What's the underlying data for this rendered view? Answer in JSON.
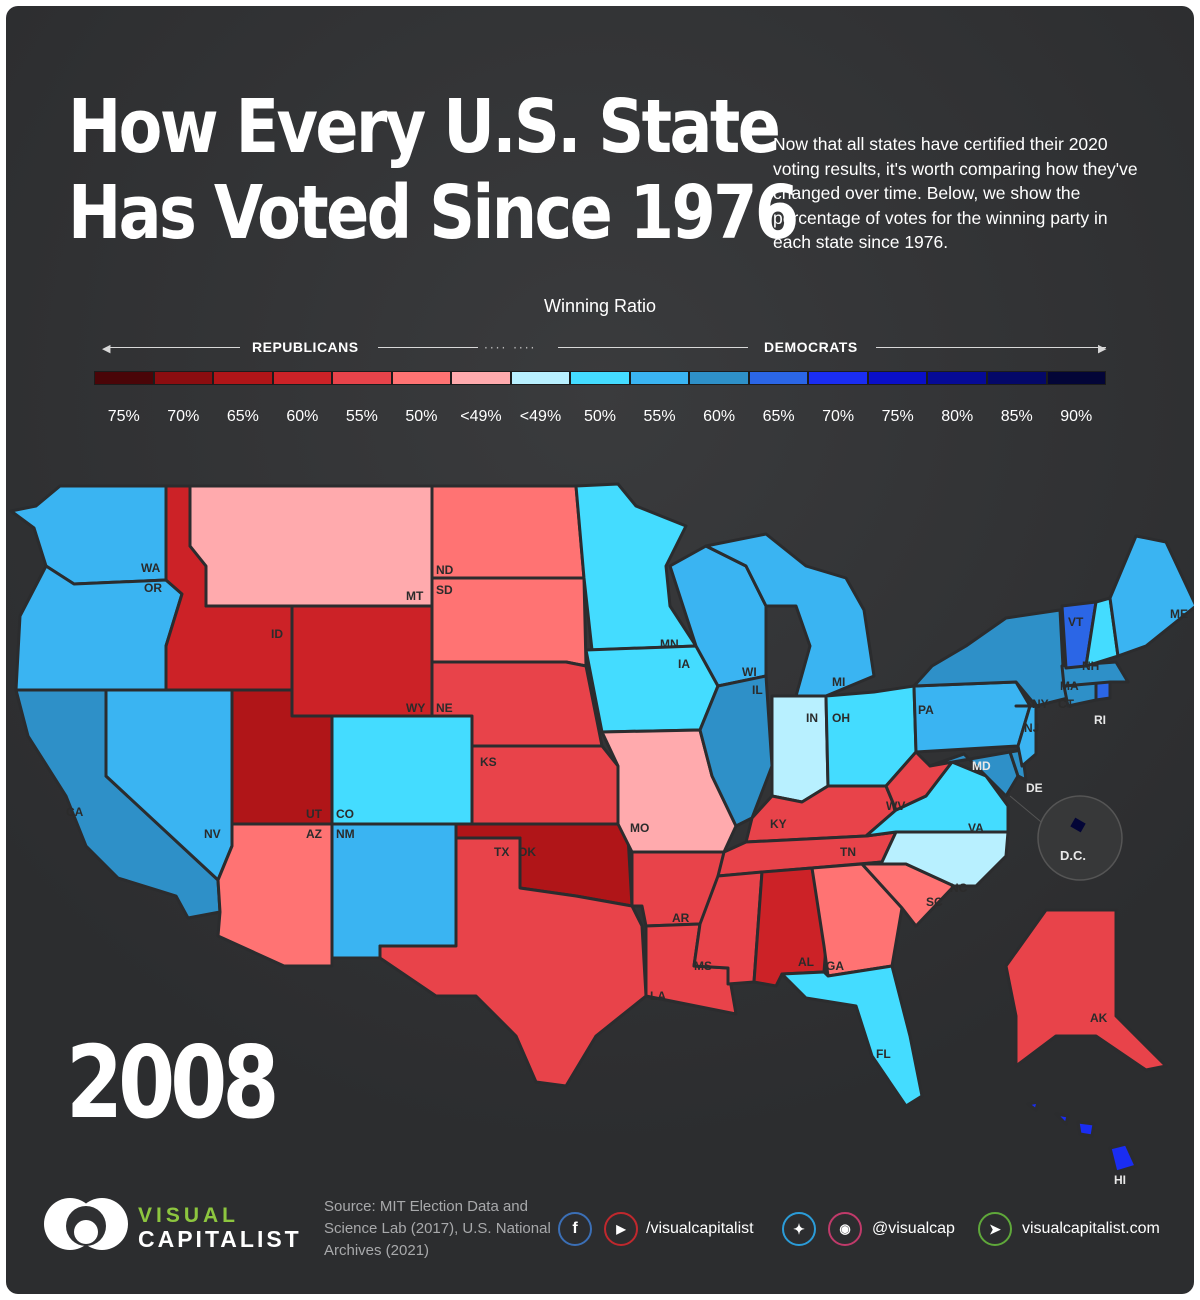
{
  "header": {
    "title_line1": "How Every U.S. State",
    "title_line2": "Has Voted Since 1976",
    "intro": "Now that all states have certified their 2020 voting results, it's worth comparing how they've changed over time. Below, we show the percentage of votes for the winning party in each state since 1976."
  },
  "legend": {
    "title": "Winning Ratio",
    "left_label": "REPUBLICANS",
    "right_label": "DEMOCRATS",
    "swatch_colors": [
      "#4a0508",
      "#8b0d10",
      "#b01518",
      "#cc2227",
      "#e8434a",
      "#ff7373",
      "#ffaaad",
      "#b8f0ff",
      "#44dcff",
      "#3ab4f2",
      "#2e90c8",
      "#2b66e6",
      "#1a2df2",
      "#0a0fc8",
      "#060a96",
      "#040868",
      "#030537"
    ],
    "ticks": [
      "75%",
      "70%",
      "65%",
      "60%",
      "55%",
      "50%",
      "<49%",
      "<49%",
      "50%",
      "55%",
      "60%",
      "65%",
      "70%",
      "75%",
      "80%",
      "85%",
      "90%"
    ]
  },
  "map": {
    "year": "2008",
    "colors": {
      "rep_60": "#cc2227",
      "rep_55": "#e8434a",
      "rep_50": "#ff7373",
      "rep_lt49": "#ffaaad",
      "rep_65": "#b01518",
      "dem_lt49": "#b8f0ff",
      "dem_50": "#44dcff",
      "dem_55": "#3ab4f2",
      "dem_60": "#2e90c8",
      "dem_65": "#2b66e6",
      "dem_70": "#1a2df2",
      "dem_90": "#030537"
    },
    "labels": {
      "WA": "WA",
      "OR": "OR",
      "CA": "CA",
      "NV": "NV",
      "ID": "ID",
      "MT": "MT",
      "WY": "WY",
      "UT": "UT",
      "AZ": "AZ",
      "CO": "CO",
      "NM": "NM",
      "ND": "ND",
      "SD": "SD",
      "NE": "NE",
      "KS": "KS",
      "OK": "OK",
      "TX": "TX",
      "MN": "MN",
      "IA": "IA",
      "MO": "MO",
      "AR": "AR",
      "LA": "LA",
      "WI": "WI",
      "IL": "IL",
      "MI": "MI",
      "IN": "IN",
      "OH": "OH",
      "KY": "KY",
      "TN": "TN",
      "MS": "MS",
      "AL": "AL",
      "GA": "GA",
      "FL": "FL",
      "SC": "SC",
      "NC": "NC",
      "VA": "VA",
      "WV": "WV",
      "PA": "PA",
      "NY": "NY",
      "NJ": "NJ",
      "DE": "DE",
      "MD": "MD",
      "CT": "CT",
      "RI": "RI",
      "MA": "MA",
      "VT": "VT",
      "NH": "NH",
      "ME": "ME",
      "AK": "AK",
      "HI": "HI",
      "DC": "D.C."
    }
  },
  "footer": {
    "logo_line1": "VISUAL",
    "logo_line2": "CAPITALIST",
    "source": "Source: MIT Election Data and Science Lab (2017), U.S. National Archives (2021)",
    "facebook_handle": "/visualcapitalist",
    "twitter_handle": "@visualcap",
    "website": "visualcapitalist.com"
  }
}
